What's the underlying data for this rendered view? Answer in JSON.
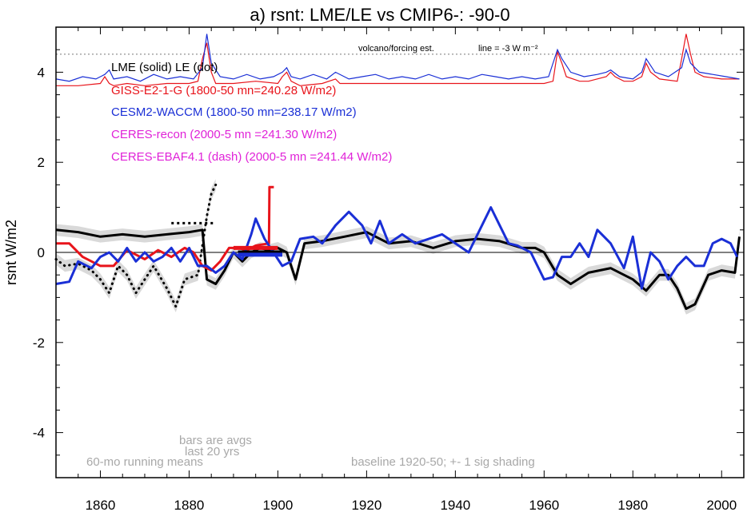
{
  "chart_data": {
    "type": "line",
    "title": "a) rsnt: LME/LE vs CMIP6-: -90-0",
    "ylabel": "rsnt W/m2",
    "xlabel": "",
    "xlim": [
      1850,
      2005
    ],
    "ylim": [
      -5.0,
      5.0
    ],
    "xticks": [
      1860,
      1880,
      1900,
      1920,
      1940,
      1960,
      1980,
      2000
    ],
    "yticks": [
      -4,
      -2,
      0,
      2,
      4
    ],
    "grid": false,
    "legend_placement": "top-left",
    "legend": [
      {
        "text": "LME (solid)   LE (dot)",
        "color": "#000000"
      },
      {
        "text": "GISS-E2-1-G (1800-50 mn=240.28 W/m2)",
        "color": "#e8141b"
      },
      {
        "text": "CESM2-WACCM (1800-50 mn=238.17 W/m2)",
        "color": "#1a2fd6"
      },
      {
        "text": "CERES-recon (2000-5 mn =241.30 W/m2)",
        "color": "#e022d8"
      },
      {
        "text": "CERES-EBAF4.1 (dash) (2000-5 mn =241.44 W/m2)",
        "color": "#e022d8"
      }
    ],
    "annotations": {
      "volcano": "volcano/forcing est.",
      "line_scale": "line = -3 W m⁻²",
      "bars": [
        "bars are avgs",
        "last 20 yrs"
      ],
      "running": "60-mo running means",
      "baseline": "baseline 1920-50; +- 1 sig shading"
    },
    "reference_lines": {
      "zero": 0,
      "volcano_baseline": 4.4
    },
    "series": [
      {
        "name": "LME",
        "style": "solid",
        "color": "#000000",
        "x": [
          1850,
          1855,
          1860,
          1865,
          1870,
          1875,
          1880,
          1883,
          1884,
          1886,
          1888,
          1890,
          1892,
          1894,
          1896,
          1898,
          1900,
          1902,
          1904,
          1906,
          1910,
          1915,
          1920,
          1925,
          1930,
          1935,
          1940,
          1945,
          1950,
          1955,
          1958,
          1960,
          1963,
          1966,
          1970,
          1975,
          1980,
          1983,
          1986,
          1988,
          1990,
          1992,
          1994,
          1997,
          2000,
          2003,
          2004
        ],
        "y": [
          0.5,
          0.45,
          0.35,
          0.4,
          0.35,
          0.4,
          0.45,
          0.5,
          -0.6,
          -0.7,
          -0.4,
          0.0,
          -0.2,
          0.0,
          0.1,
          0.05,
          0.1,
          0.0,
          -0.6,
          0.2,
          0.25,
          0.35,
          0.45,
          0.2,
          0.25,
          0.1,
          0.25,
          0.3,
          0.25,
          0.1,
          0.1,
          0.0,
          -0.5,
          -0.7,
          -0.45,
          -0.35,
          -0.6,
          -0.85,
          -0.5,
          -0.5,
          -0.8,
          -1.25,
          -1.15,
          -0.5,
          -0.4,
          -0.45,
          0.35
        ]
      },
      {
        "name": "LE",
        "style": "dot",
        "color": "#000000",
        "x": [
          1850,
          1852,
          1855,
          1858,
          1860,
          1862,
          1864,
          1866,
          1868,
          1870,
          1872,
          1875,
          1877,
          1879,
          1882,
          1884,
          1885,
          1886
        ],
        "y": [
          -0.15,
          -0.3,
          -0.25,
          -0.4,
          -0.6,
          -0.9,
          -0.3,
          -0.5,
          -0.9,
          -0.6,
          -0.3,
          -0.8,
          -1.2,
          -0.6,
          -0.5,
          0.8,
          1.3,
          1.5
        ]
      },
      {
        "name": "GISS-E2-1-G",
        "style": "solid",
        "color": "#e8141b",
        "x": [
          1850,
          1853,
          1856,
          1860,
          1863,
          1866,
          1868,
          1870,
          1873,
          1876,
          1879,
          1881,
          1883,
          1885,
          1887,
          1889,
          1891,
          1893,
          1895,
          1898,
          1898.1,
          1899,
          1899.1
        ],
        "y": [
          0.2,
          0.2,
          -0.1,
          -0.3,
          -0.3,
          0.05,
          -0.05,
          -0.15,
          0.05,
          -0.1,
          0.1,
          0.0,
          -0.3,
          -0.4,
          -0.2,
          0.1,
          0.1,
          0.05,
          0.15,
          0.2,
          1.45,
          1.45,
          1.45
        ]
      },
      {
        "name": "CESM2-WACCM",
        "style": "solid",
        "color": "#1a2fd6",
        "x": [
          1850,
          1853,
          1855,
          1858,
          1860,
          1862,
          1864,
          1866,
          1868,
          1870,
          1872,
          1874,
          1876,
          1878,
          1880,
          1882,
          1884,
          1886,
          1888,
          1890,
          1892,
          1894,
          1895,
          1897,
          1899,
          1901,
          1903,
          1905,
          1908,
          1910,
          1913,
          1916,
          1919,
          1921,
          1923,
          1925,
          1928,
          1931,
          1934,
          1937,
          1940,
          1943,
          1946,
          1948,
          1950,
          1952,
          1954,
          1957,
          1960,
          1962,
          1964,
          1966,
          1968,
          1970,
          1972,
          1975,
          1978,
          1980,
          1982,
          1984,
          1986,
          1988,
          1990,
          1992,
          1994,
          1996,
          1998,
          2000,
          2002,
          2003.5
        ],
        "y": [
          -0.7,
          -0.65,
          -0.2,
          -0.35,
          -0.1,
          0.0,
          -0.2,
          0.1,
          -0.2,
          0.0,
          -0.2,
          -0.1,
          0.1,
          -0.2,
          0.1,
          -0.3,
          -0.3,
          -0.45,
          -0.3,
          0.0,
          -0.15,
          0.4,
          0.75,
          0.3,
          0.0,
          -0.3,
          -0.2,
          0.3,
          0.35,
          0.2,
          0.6,
          0.9,
          0.6,
          0.2,
          0.7,
          0.2,
          0.4,
          0.2,
          0.3,
          0.4,
          0.2,
          0.0,
          0.6,
          1.0,
          0.6,
          0.2,
          0.15,
          0.0,
          -0.6,
          -0.55,
          -0.1,
          -0.1,
          0.2,
          -0.1,
          0.5,
          0.2,
          -0.35,
          0.35,
          -0.8,
          0.0,
          -0.2,
          -0.6,
          -0.3,
          -0.1,
          -0.3,
          -0.3,
          0.2,
          0.3,
          0.2,
          -0.1
        ]
      }
    ],
    "bars": [
      {
        "name": "LE",
        "style": "dot",
        "color": "#000000",
        "x_start": 1876,
        "x_end": 1886,
        "value": 0.65
      },
      {
        "name": "GISS-E2-1-G",
        "color": "#e8141b",
        "x_start": 1890,
        "x_end": 1900,
        "value": 0.1
      },
      {
        "name": "LME",
        "color": "#000000",
        "x_start": 1891,
        "x_end": 1901,
        "value": 0.0
      },
      {
        "name": "CESM2-WACCM",
        "color": "#1a2fd6",
        "x_start": 1891,
        "x_end": 1901,
        "value": -0.05
      }
    ],
    "volcano_traces": [
      {
        "name": "GISS-E2-1-G",
        "color": "#e8141b",
        "x": [
          1850,
          1855,
          1860,
          1861,
          1862,
          1863,
          1866,
          1870,
          1875,
          1880,
          1882,
          1883,
          1884,
          1885,
          1886,
          1888,
          1890,
          1895,
          1900,
          1901,
          1902,
          1903,
          1905,
          1910,
          1913,
          1914,
          1916,
          1920,
          1925,
          1930,
          1940,
          1950,
          1960,
          1962,
          1963,
          1964,
          1965,
          1968,
          1970,
          1974,
          1975,
          1976,
          1978,
          1980,
          1982,
          1983,
          1984,
          1986,
          1990,
          1991,
          1992,
          1993,
          1994,
          1996,
          2000,
          2004
        ],
        "y": [
          3.7,
          3.7,
          3.75,
          3.9,
          3.75,
          3.7,
          3.75,
          3.7,
          3.75,
          3.75,
          3.8,
          4.3,
          4.65,
          4.0,
          3.75,
          3.75,
          3.75,
          3.8,
          3.75,
          3.9,
          4.0,
          3.8,
          3.7,
          3.75,
          3.85,
          3.75,
          3.75,
          3.75,
          3.75,
          3.75,
          3.75,
          3.75,
          3.75,
          3.8,
          4.45,
          4.2,
          3.9,
          3.8,
          3.8,
          3.9,
          4.0,
          3.9,
          3.8,
          3.8,
          3.9,
          4.2,
          4.0,
          3.85,
          3.8,
          4.3,
          4.85,
          4.4,
          4.0,
          3.9,
          3.85,
          3.85
        ]
      },
      {
        "name": "CESM2-WACCM",
        "color": "#1a2fd6",
        "x": [
          1850,
          1853,
          1856,
          1859,
          1861,
          1862,
          1863,
          1866,
          1869,
          1872,
          1875,
          1878,
          1881,
          1883,
          1884,
          1885,
          1887,
          1890,
          1893,
          1896,
          1899,
          1901,
          1902,
          1903,
          1905,
          1908,
          1911,
          1913,
          1916,
          1919,
          1922,
          1925,
          1928,
          1931,
          1934,
          1937,
          1940,
          1943,
          1946,
          1949,
          1952,
          1955,
          1958,
          1961,
          1963,
          1964,
          1966,
          1969,
          1972,
          1974,
          1975,
          1977,
          1980,
          1982,
          1983,
          1985,
          1988,
          1991,
          1992,
          1993,
          1995,
          1998,
          2001,
          2004
        ],
        "y": [
          3.85,
          3.8,
          3.9,
          3.85,
          3.95,
          4.05,
          3.85,
          3.9,
          3.8,
          3.95,
          3.85,
          3.9,
          3.85,
          4.1,
          4.85,
          4.2,
          3.9,
          3.85,
          3.95,
          3.85,
          3.9,
          4.0,
          4.1,
          3.9,
          3.85,
          3.95,
          3.85,
          4.0,
          3.85,
          3.9,
          3.95,
          3.85,
          3.9,
          3.85,
          3.95,
          3.85,
          3.9,
          3.85,
          3.95,
          3.9,
          3.85,
          3.9,
          3.85,
          3.9,
          4.5,
          4.3,
          4.0,
          3.9,
          3.95,
          4.0,
          4.05,
          3.9,
          3.85,
          4.0,
          4.3,
          4.0,
          3.9,
          4.1,
          4.5,
          4.2,
          4.0,
          3.95,
          3.9,
          3.85
        ]
      }
    ]
  }
}
